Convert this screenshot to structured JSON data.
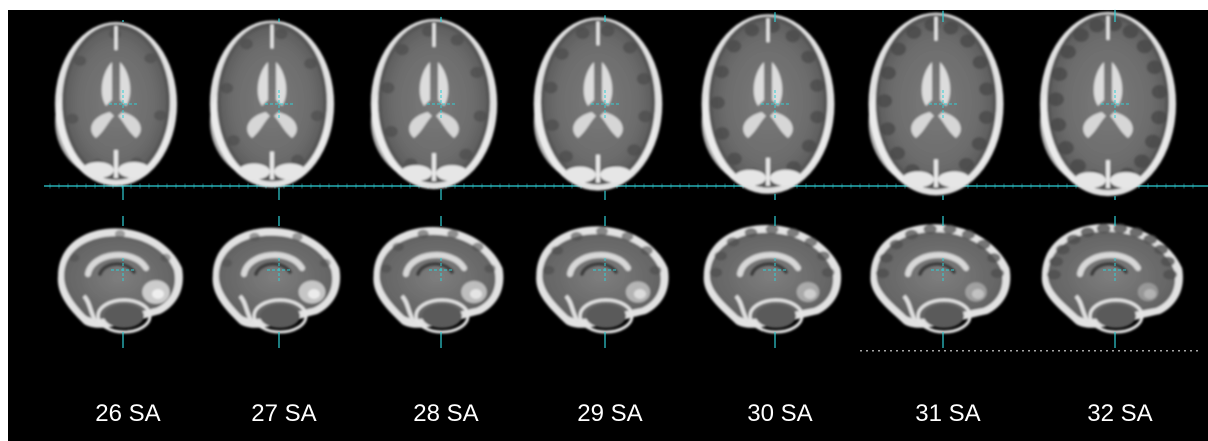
{
  "image": {
    "background": "#000000",
    "frame": "#ffffff",
    "crosshair_color": "#2fd0d6",
    "tissue_light": "#e2e2e2",
    "tissue_gray": "#8a8a8a",
    "tissue_dark": "#4e4e4e"
  },
  "series": [
    {
      "label": "26 SA",
      "cortex_folding": 0.05,
      "scale": 1.0
    },
    {
      "label": "27 SA",
      "cortex_folding": 0.15,
      "scale": 1.02
    },
    {
      "label": "28 SA",
      "cortex_folding": 0.3,
      "scale": 1.04
    },
    {
      "label": "29 SA",
      "cortex_folding": 0.45,
      "scale": 1.06
    },
    {
      "label": "30 SA",
      "cortex_folding": 0.65,
      "scale": 1.1
    },
    {
      "label": "31 SA",
      "cortex_folding": 0.8,
      "scale": 1.12
    },
    {
      "label": "32 SA",
      "cortex_folding": 0.95,
      "scale": 1.13
    }
  ]
}
